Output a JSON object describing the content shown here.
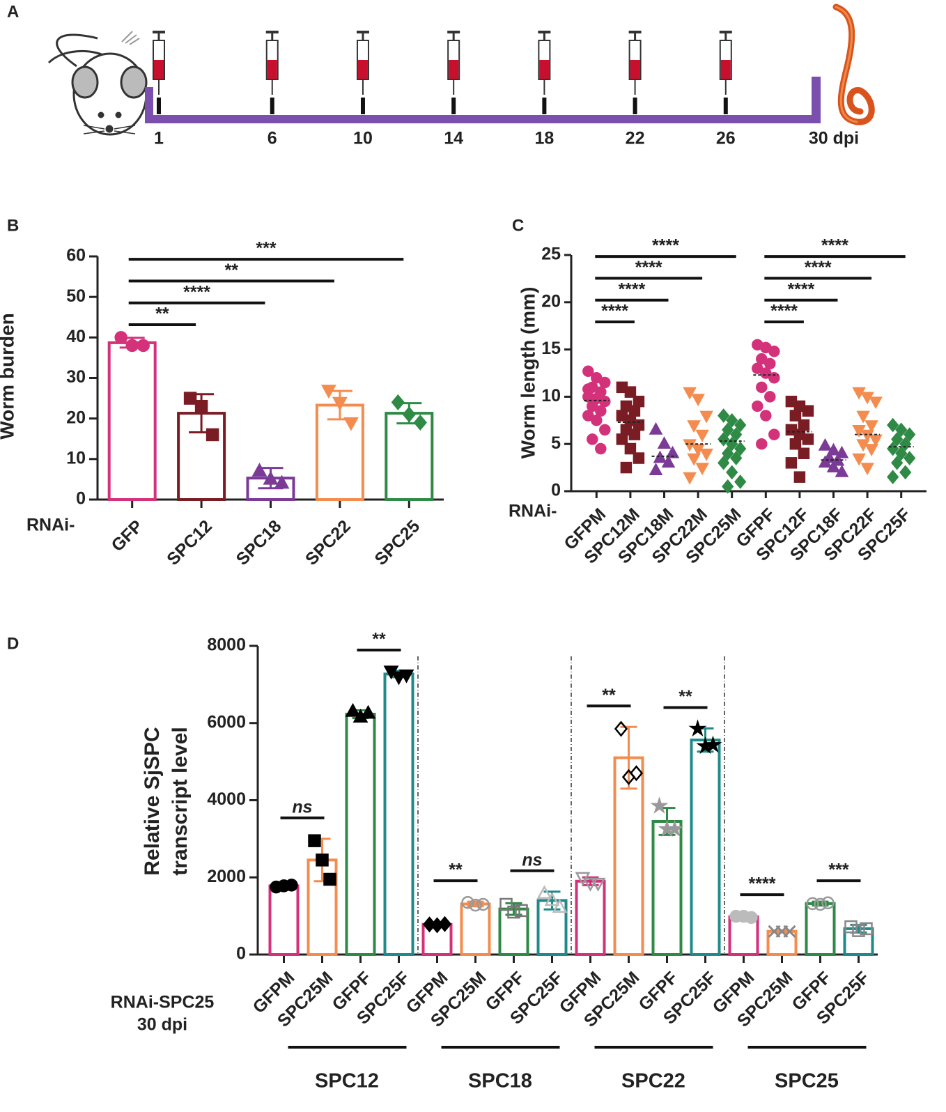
{
  "timeline": {
    "panel": "A",
    "days": [
      1,
      6,
      10,
      14,
      18,
      22,
      26,
      {
        "value": 30,
        "label": "30 dpi"
      }
    ]
  },
  "chart_data": [
    {
      "type": "bar",
      "panel": "B",
      "ylabel": "Worm burden",
      "xlabel": "RNAi-",
      "categories": [
        "GFP",
        "SPC12",
        "SPC18",
        "SPC22",
        "SPC25"
      ],
      "colors": [
        "#d4317b",
        "#7a1c24",
        "#7b3a96",
        "#f48c4f",
        "#2e8a45"
      ],
      "markers": [
        "circle",
        "square",
        "triangle",
        "triangle-down",
        "diamond"
      ],
      "values": [
        38.7,
        21.3,
        5.3,
        23.3,
        21.3
      ],
      "errors": [
        1.2,
        4.7,
        2.5,
        3.5,
        2.5
      ],
      "points": [
        [
          40,
          38,
          38
        ],
        [
          25,
          23,
          16
        ],
        [
          7,
          5,
          4
        ],
        [
          27,
          24,
          19
        ],
        [
          24,
          21,
          19
        ]
      ],
      "ylim": [
        0,
        60
      ],
      "yticks": [
        0,
        10,
        20,
        30,
        40,
        50,
        60
      ],
      "comparisons": [
        {
          "pair": [
            "GFP",
            "SPC12"
          ],
          "label": "**"
        },
        {
          "pair": [
            "GFP",
            "SPC18"
          ],
          "label": "****"
        },
        {
          "pair": [
            "GFP",
            "SPC22"
          ],
          "label": "**"
        },
        {
          "pair": [
            "GFP",
            "SPC25"
          ],
          "label": "***"
        }
      ]
    },
    {
      "type": "dot",
      "panel": "C",
      "ylabel": "Worm length (mm)",
      "xlabel": "RNAi-",
      "categories": [
        "GFPM",
        "SPC12M",
        "SPC18M",
        "SPC22M",
        "SPC25M",
        "GFPF",
        "SPC12F",
        "SPC18F",
        "SPC22F",
        "SPC25F"
      ],
      "colors": [
        "#d4317b",
        "#7a1c24",
        "#7b3a96",
        "#f48c4f",
        "#2e8a45",
        "#d4317b",
        "#7a1c24",
        "#7b3a96",
        "#f48c4f",
        "#2e8a45"
      ],
      "markers": [
        "circle",
        "square",
        "triangle",
        "triangle-down",
        "diamond",
        "circle",
        "square",
        "triangle",
        "triangle-down",
        "diamond"
      ],
      "values": [
        [
          12.7,
          12,
          11.5,
          11,
          10.5,
          10,
          9.8,
          9.5,
          9,
          8.5,
          8,
          7.5,
          6.5,
          5.5,
          4.5,
          10.8
        ],
        [
          11,
          10.5,
          9.5,
          9,
          8.5,
          8,
          7.5,
          7,
          6.5,
          6,
          5.5,
          4.5,
          3.5,
          2.5
        ],
        [
          6.5,
          5,
          4,
          3.5,
          3,
          2.2
        ],
        [
          10.5,
          9.8,
          8,
          7,
          6,
          5,
          4.5,
          4,
          3.5,
          2.5,
          1.5
        ],
        [
          8,
          7.5,
          7,
          6.5,
          6,
          5.5,
          5,
          4.5,
          4,
          3.5,
          3,
          2,
          1,
          0.5
        ],
        [
          15.5,
          15.2,
          14.8,
          14,
          13.5,
          13,
          12.5,
          12,
          11,
          10,
          9,
          8,
          6,
          5
        ],
        [
          9.5,
          9,
          8.5,
          8,
          7,
          6.5,
          6,
          5.5,
          5,
          4,
          3,
          1.5
        ],
        [
          4.8,
          4.3,
          4,
          3.5,
          3.2,
          3,
          2.5,
          2
        ],
        [
          10.5,
          10,
          9.5,
          8,
          7,
          6.5,
          6,
          5.5,
          5,
          4.5,
          3.5,
          2.5
        ],
        [
          7,
          6.5,
          6,
          5.5,
          5,
          4.5,
          4,
          3.5,
          3,
          2,
          1.5
        ]
      ],
      "means": [
        9.6,
        7.3,
        3.7,
        5,
        5.3,
        12.3,
        6.3,
        3.3,
        6,
        4.7
      ],
      "ylim": [
        0,
        25
      ],
      "yticks": [
        0,
        5,
        10,
        15,
        20,
        25
      ],
      "comparisons": [
        {
          "pair": [
            "GFPM",
            "SPC12M"
          ],
          "label": "****"
        },
        {
          "pair": [
            "GFPM",
            "SPC18M"
          ],
          "label": "****"
        },
        {
          "pair": [
            "GFPM",
            "SPC22M"
          ],
          "label": "****"
        },
        {
          "pair": [
            "GFPM",
            "SPC25M"
          ],
          "label": "****"
        },
        {
          "pair": [
            "GFPF",
            "SPC12F"
          ],
          "label": "****"
        },
        {
          "pair": [
            "GFPF",
            "SPC18F"
          ],
          "label": "****"
        },
        {
          "pair": [
            "GFPF",
            "SPC22F"
          ],
          "label": "****"
        },
        {
          "pair": [
            "GFPF",
            "SPC25F"
          ],
          "label": "****"
        }
      ]
    },
    {
      "type": "grouped-bar",
      "panel": "D",
      "ylabel": [
        "Relative SjSPC",
        "transcript level"
      ],
      "xlabel": [
        "RNAi-SPC25",
        "30 dpi"
      ],
      "colors": [
        "#d4317b",
        "#f48c4f",
        "#2e8a45",
        "#1f8a8a"
      ],
      "ylim": [
        0,
        8000
      ],
      "yticks": [
        0,
        2000,
        4000,
        6000,
        8000
      ],
      "groups": [
        {
          "name": "SPC12",
          "categories": [
            "GFPM",
            "SPC25M",
            "GFPF",
            "SPC25F"
          ],
          "values": [
            1780,
            2450,
            6230,
            7270
          ],
          "errors": [
            80,
            550,
            100,
            80
          ],
          "points": [
            [
              1750,
              1780,
              1800
            ],
            [
              2950,
              2450,
              1950
            ],
            [
              6300,
              6150,
              6250
            ],
            [
              7350,
              7200,
              7250
            ]
          ],
          "markers": [
            "circle",
            "square",
            "triangle",
            "triangle-down"
          ],
          "point_colors": [
            "#000000",
            "#000000",
            "#000000",
            "#000000"
          ],
          "filled": [
            true,
            true,
            true,
            true
          ],
          "comparisons": [
            {
              "pair": [
                "GFPM",
                "SPC25M"
              ],
              "label": "ns",
              "style": "italic"
            },
            {
              "pair": [
                "GFPF",
                "SPC25F"
              ],
              "label": "**"
            }
          ]
        },
        {
          "name": "SPC18",
          "categories": [
            "GFPM",
            "SPC25M",
            "GFPF",
            "SPC25F"
          ],
          "values": [
            780,
            1310,
            1180,
            1400
          ],
          "errors": [
            30,
            60,
            150,
            230
          ],
          "points": [
            [
              780,
              760,
              790
            ],
            [
              1350,
              1280,
              1300
            ],
            [
              1300,
              1100,
              1140
            ],
            [
              1580,
              1400,
              1220
            ]
          ],
          "markers": [
            "diamond",
            "circle",
            "square",
            "triangle"
          ],
          "point_colors": [
            "#000000",
            "#999999",
            "#777777",
            "#bbbbbb"
          ],
          "filled": [
            true,
            false,
            false,
            false
          ],
          "comparisons": [
            {
              "pair": [
                "GFPM",
                "SPC25M"
              ],
              "label": "**"
            },
            {
              "pair": [
                "GFPF",
                "SPC25F"
              ],
              "label": "ns",
              "style": "italic"
            }
          ]
        },
        {
          "name": "SPC22",
          "categories": [
            "GFPM",
            "SPC25M",
            "GFPF",
            "SPC25F"
          ],
          "values": [
            1900,
            5100,
            3450,
            5560
          ],
          "errors": [
            100,
            800,
            350,
            300
          ],
          "points": [
            [
              2000,
              1850,
              1850
            ],
            [
              5850,
              4600,
              4700
            ],
            [
              3850,
              3250,
              3250
            ],
            [
              5850,
              5400,
              5430
            ]
          ],
          "markers": [
            "triangle-down",
            "diamond",
            "star",
            "star"
          ],
          "point_colors": [
            "#999999",
            "#000000",
            "#999999",
            "#000000"
          ],
          "filled": [
            false,
            false,
            true,
            true
          ],
          "comparisons": [
            {
              "pair": [
                "GFPM",
                "SPC25M"
              ],
              "label": "**"
            },
            {
              "pair": [
                "GFPF",
                "SPC25F"
              ],
              "label": "**"
            }
          ]
        },
        {
          "name": "SPC25",
          "categories": [
            "GFPM",
            "SPC25M",
            "GFPF",
            "SPC25F"
          ],
          "values": [
            980,
            600,
            1320,
            670
          ],
          "errors": [
            30,
            20,
            50,
            100
          ],
          "points": [
            [
              990,
              990,
              960
            ],
            [
              600,
              600,
              600
            ],
            [
              1320,
              1300,
              1340
            ],
            [
              720,
              620,
              670
            ]
          ],
          "markers": [
            "circle",
            "x",
            "circle",
            "square"
          ],
          "point_colors": [
            "#bbbbbb",
            "#888888",
            "#999999",
            "#888888"
          ],
          "filled": [
            true,
            false,
            false,
            false
          ],
          "comparisons": [
            {
              "pair": [
                "GFPM",
                "SPC25M"
              ],
              "label": "****"
            },
            {
              "pair": [
                "GFPF",
                "SPC25F"
              ],
              "label": "***"
            }
          ]
        }
      ]
    }
  ]
}
